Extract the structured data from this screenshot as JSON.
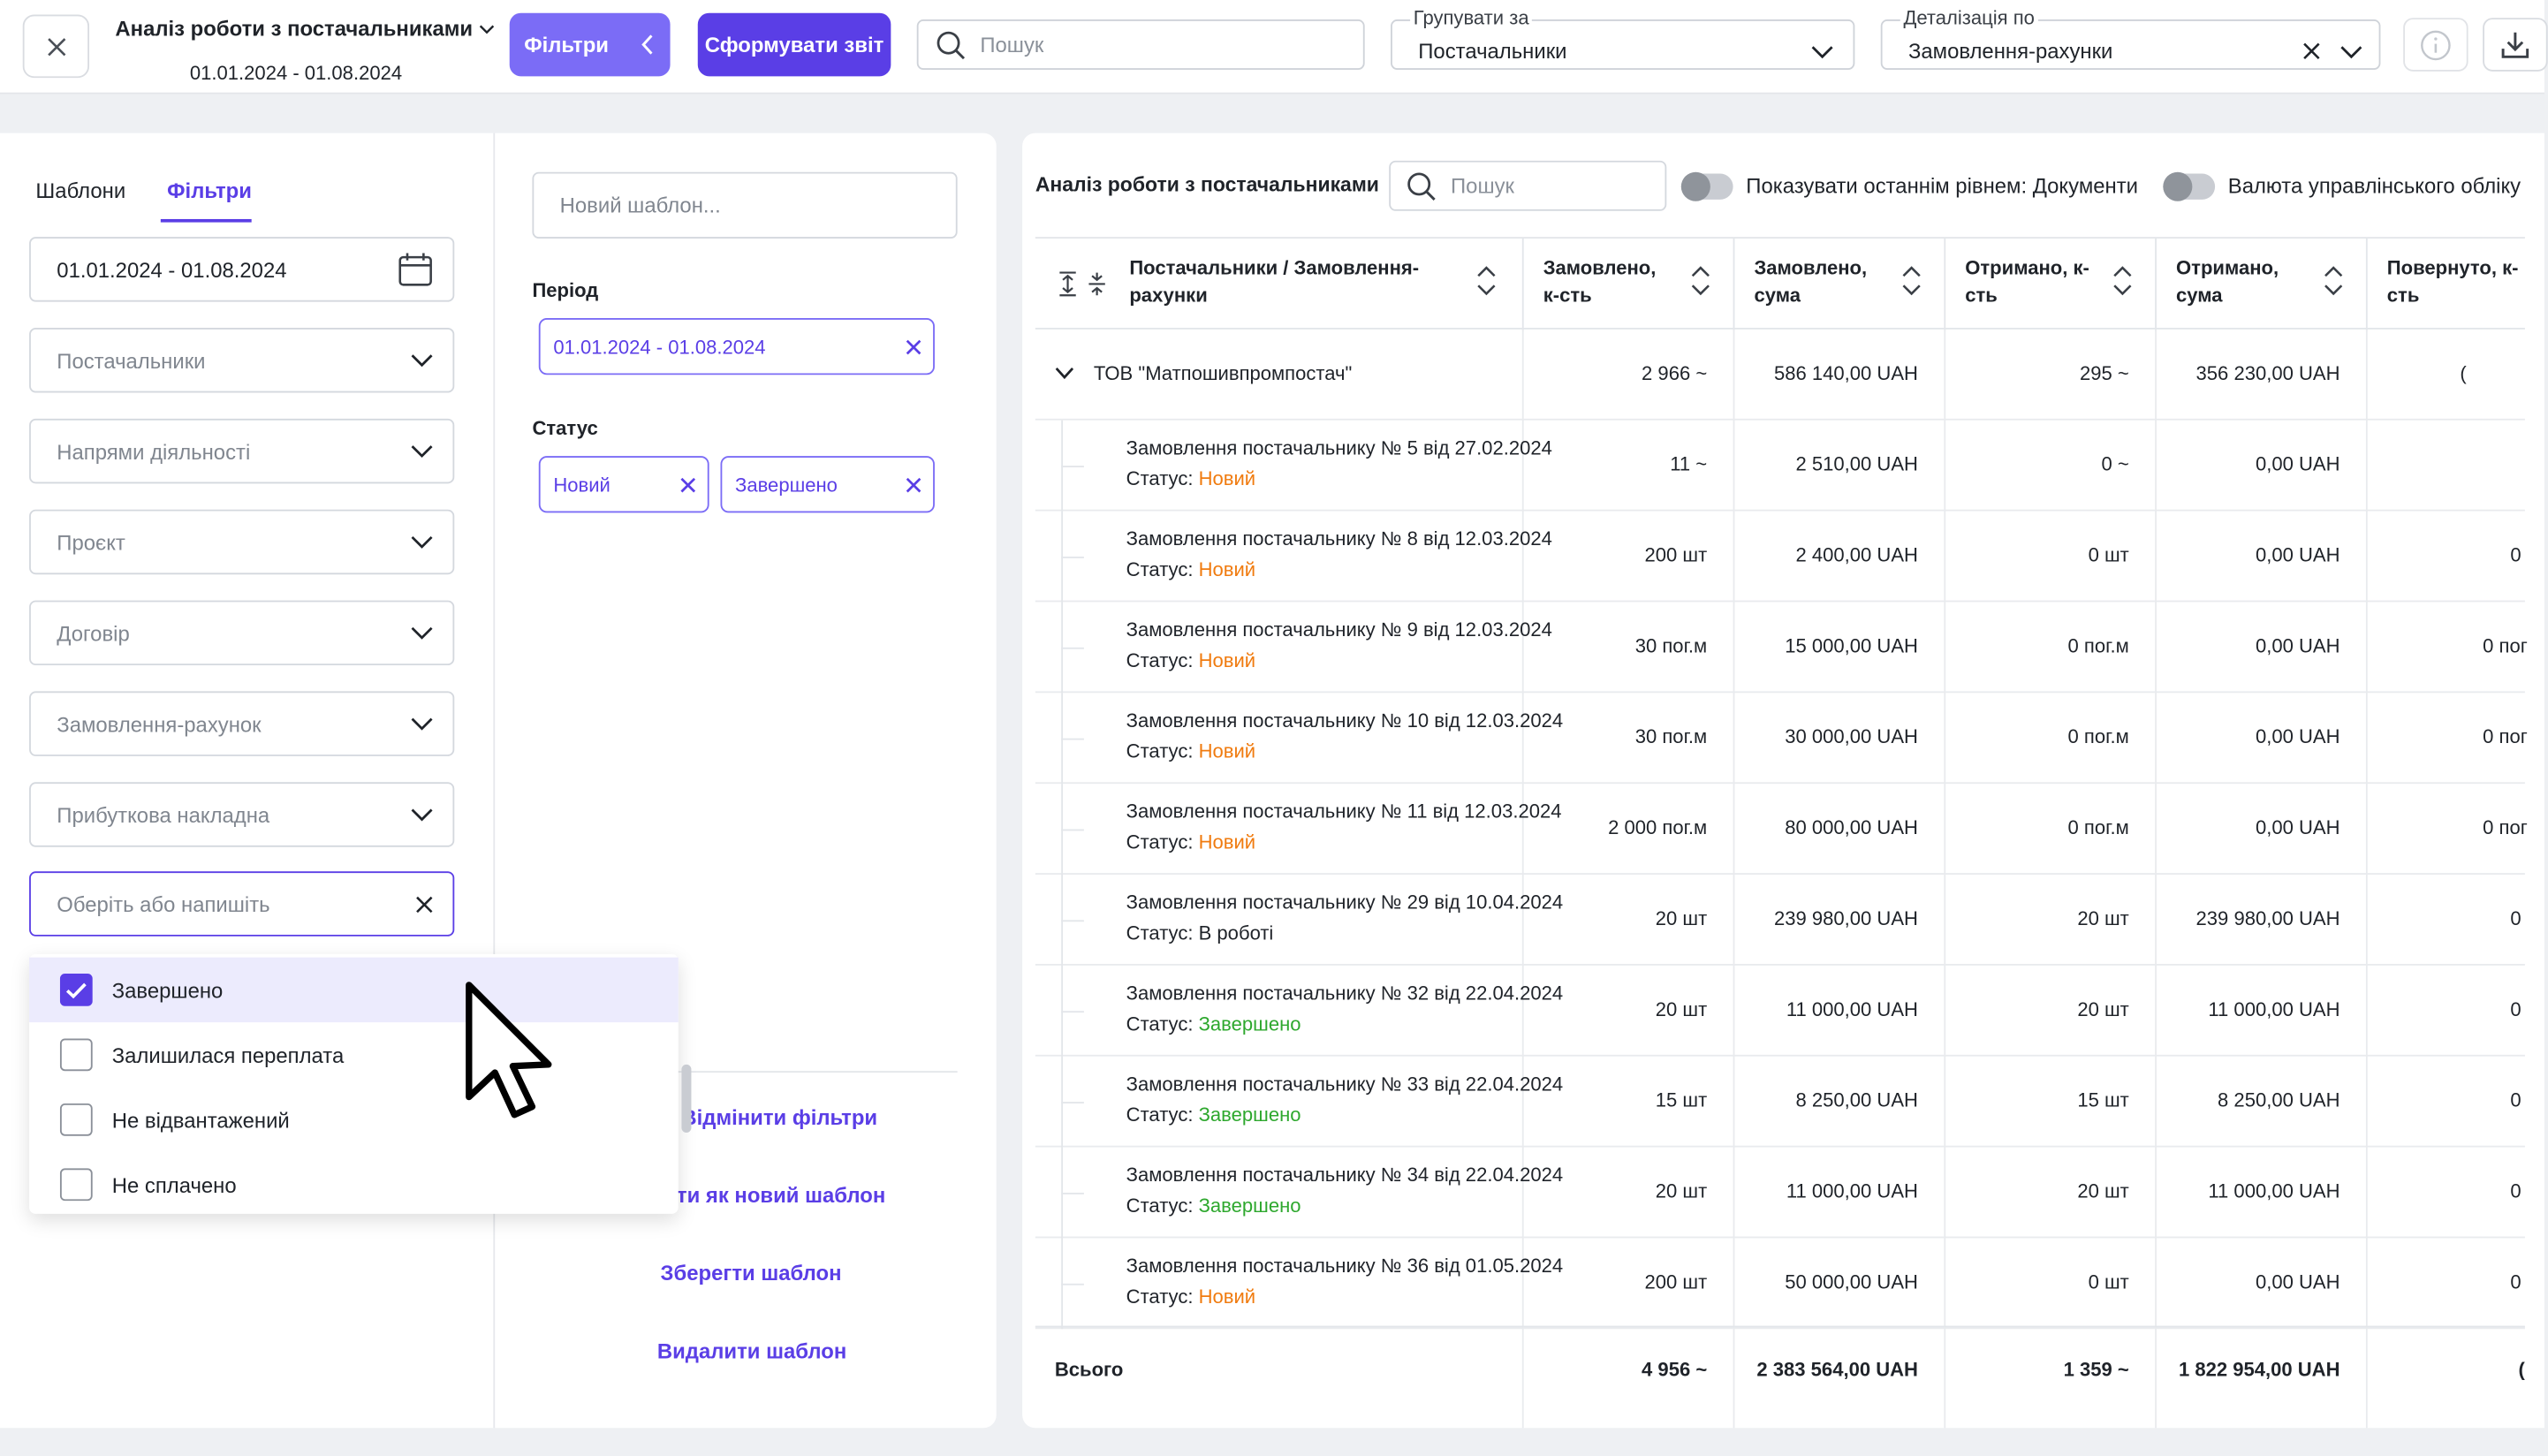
{
  "header": {
    "report_title": "Аналіз роботи з постачальниками",
    "report_period": "01.01.2024 - 01.08.2024",
    "filters_button": "Фільтри",
    "generate_button": "Сформувати звіт",
    "search_placeholder": "Пошук",
    "group_by_label": "Групувати за",
    "group_by_value": "Постачальники",
    "detail_label": "Деталізація по",
    "detail_value": "Замовлення-рахунки"
  },
  "left_panel": {
    "tabs": [
      "Шаблони",
      "Фільтри"
    ],
    "date_range": "01.01.2024 - 01.08.2024",
    "fields": [
      "Постачальники",
      "Напрями діяльності",
      "Проєкт",
      "Договір",
      "Замовлення-рахунок",
      "Прибуткова накладна"
    ],
    "status_placeholder": "Оберіть або напишіть",
    "dropdown_options": [
      {
        "label": "Завершено",
        "checked": true
      },
      {
        "label": "Залишилася переплата",
        "checked": false
      },
      {
        "label": "Не відвантажений",
        "checked": false
      },
      {
        "label": "Не сплачено",
        "checked": false
      }
    ],
    "template_placeholder": "Новий шаблон...",
    "period_label": "Період",
    "period_chip": "01.01.2024 - 01.08.2024",
    "status_label": "Статус",
    "status_chips": [
      "Новий",
      "Завершено"
    ],
    "actions": {
      "cancel_filters": "Відмінити фільтри",
      "save_as_new": "ти як новий шаблон",
      "save_template": "Зберегти шаблон",
      "delete_template": "Видалити шаблон"
    }
  },
  "report": {
    "title": "Аналіз роботи з постачальниками",
    "search_placeholder": "Пошук",
    "toggle_last_level": "Показувати останнім рівнем: Документи",
    "toggle_currency": "Валюта управлінського обліку",
    "columns": [
      "Постачальники / Замовлення-рахунки",
      "Замовлено, к-сть",
      "Замовлено, сума",
      "Отримано, к-сть",
      "Отримано, сума",
      "Повернуто, к-сть"
    ],
    "group": {
      "name": "ТОВ \"Матпошивпромпостач\"",
      "ordered_qty": "2 966 ~",
      "ordered_sum": "586 140,00 UAH",
      "received_qty": "295 ~",
      "received_sum": "356 230,00 UAH",
      "returned_qty": "("
    },
    "rows": [
      {
        "title": "Замовлення постачальнику № 5 від 27.02.2024",
        "status_prefix": "Статус: ",
        "status": "Новий",
        "status_type": "new",
        "ordered_qty": "11 ~",
        "ordered_sum": "2 510,00 UAH",
        "received_qty": "0 ~",
        "received_sum": "0,00 UAH",
        "returned_qty": ""
      },
      {
        "title": "Замовлення постачальнику № 8 від 12.03.2024",
        "status_prefix": "Статус: ",
        "status": "Новий",
        "status_type": "new",
        "ordered_qty": "200 шт",
        "ordered_sum": "2 400,00 UAH",
        "received_qty": "0 шт",
        "received_sum": "0,00 UAH",
        "returned_qty": "0"
      },
      {
        "title": "Замовлення постачальнику № 9 від 12.03.2024",
        "status_prefix": "Статус: ",
        "status": "Новий",
        "status_type": "new",
        "ordered_qty": "30 пог.м",
        "ordered_sum": "15 000,00 UAH",
        "received_qty": "0 пог.м",
        "received_sum": "0,00 UAH",
        "returned_qty": "0 пог"
      },
      {
        "title": "Замовлення постачальнику № 10 від 12.03.2024",
        "status_prefix": "Статус: ",
        "status": "Новий",
        "status_type": "new",
        "ordered_qty": "30 пог.м",
        "ordered_sum": "30 000,00 UAH",
        "received_qty": "0 пог.м",
        "received_sum": "0,00 UAH",
        "returned_qty": "0 пог"
      },
      {
        "title": "Замовлення постачальнику № 11 від 12.03.2024",
        "status_prefix": "Статус: ",
        "status": "Новий",
        "status_type": "new",
        "ordered_qty": "2 000 пог.м",
        "ordered_sum": "80 000,00 UAH",
        "received_qty": "0 пог.м",
        "received_sum": "0,00 UAH",
        "returned_qty": "0 пог"
      },
      {
        "title": "Замовлення постачальнику № 29 від 10.04.2024",
        "status_prefix": "Статус: ",
        "status": "В роботі",
        "status_type": "work",
        "ordered_qty": "20 шт",
        "ordered_sum": "239 980,00 UAH",
        "received_qty": "20 шт",
        "received_sum": "239 980,00 UAH",
        "returned_qty": "0"
      },
      {
        "title": "Замовлення постачальнику № 32 від 22.04.2024",
        "status_prefix": "Статус: ",
        "status": "Завершено",
        "status_type": "done",
        "ordered_qty": "20 шт",
        "ordered_sum": "11 000,00 UAH",
        "received_qty": "20 шт",
        "received_sum": "11 000,00 UAH",
        "returned_qty": "0"
      },
      {
        "title": "Замовлення постачальнику № 33 від 22.04.2024",
        "status_prefix": "Статус: ",
        "status": "Завершено",
        "status_type": "done",
        "ordered_qty": "15 шт",
        "ordered_sum": "8 250,00 UAH",
        "received_qty": "15 шт",
        "received_sum": "8 250,00 UAH",
        "returned_qty": "0"
      },
      {
        "title": "Замовлення постачальнику № 34 від 22.04.2024",
        "status_prefix": "Статус: ",
        "status": "Завершено",
        "status_type": "done",
        "ordered_qty": "20 шт",
        "ordered_sum": "11 000,00 UAH",
        "received_qty": "20 шт",
        "received_sum": "11 000,00 UAH",
        "returned_qty": "0"
      },
      {
        "title": "Замовлення постачальнику № 36 від 01.05.2024",
        "status_prefix": "Статус: ",
        "status": "Новий",
        "status_type": "new",
        "ordered_qty": "200 шт",
        "ordered_sum": "50 000,00 UAH",
        "received_qty": "0 шт",
        "received_sum": "0,00 UAH",
        "returned_qty": "0"
      }
    ],
    "total": {
      "label": "Всього",
      "ordered_qty": "4 956 ~",
      "ordered_sum": "2 383 564,00 UAH",
      "received_qty": "1 359 ~",
      "received_sum": "1 822 954,00 UAH",
      "returned_qty": "("
    }
  },
  "colors": {
    "accent": "#5a3ee6",
    "accent_light": "#7b6cf6",
    "status_new": "#f07b0f",
    "status_done": "#2ea82e"
  }
}
